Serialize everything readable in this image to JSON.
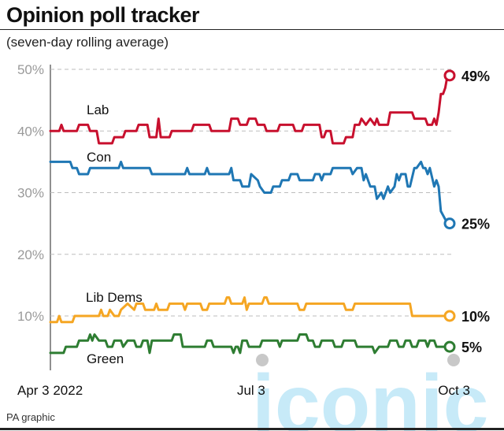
{
  "chart_data": {
    "type": "line",
    "title": "Opinion poll tracker",
    "subtitle": "(seven-day rolling average)",
    "ylim": [
      0,
      50
    ],
    "yticks": [
      "10%",
      "20%",
      "30%",
      "40%",
      "50%"
    ],
    "ytick_values": [
      10,
      20,
      30,
      40,
      50
    ],
    "xticks": [
      "Apr 3 2022",
      "Jul 3",
      "Oct 3"
    ],
    "xtick_positions": [
      0,
      91,
      183
    ],
    "grid": true,
    "series": [
      {
        "name": "Lab",
        "color": "#c8102e",
        "end_label": "49%",
        "points": [
          [
            0,
            40
          ],
          [
            4,
            40
          ],
          [
            5,
            41
          ],
          [
            6,
            40
          ],
          [
            12,
            40
          ],
          [
            13,
            41
          ],
          [
            17,
            41
          ],
          [
            18,
            40
          ],
          [
            21,
            40
          ],
          [
            22,
            38
          ],
          [
            28,
            38
          ],
          [
            29,
            39
          ],
          [
            33,
            39
          ],
          [
            34,
            40
          ],
          [
            39,
            40
          ],
          [
            40,
            41
          ],
          [
            44,
            41
          ],
          [
            45,
            39
          ],
          [
            48,
            39
          ],
          [
            49,
            42
          ],
          [
            50,
            39
          ],
          [
            54,
            39
          ],
          [
            55,
            40
          ],
          [
            64,
            40
          ],
          [
            65,
            41
          ],
          [
            72,
            41
          ],
          [
            73,
            40
          ],
          [
            81,
            40
          ],
          [
            82,
            42
          ],
          [
            85,
            42
          ],
          [
            86,
            41
          ],
          [
            89,
            41
          ],
          [
            90,
            42
          ],
          [
            93,
            42
          ],
          [
            94,
            41
          ],
          [
            97,
            41
          ],
          [
            98,
            40
          ],
          [
            103,
            40
          ],
          [
            104,
            41
          ],
          [
            110,
            41
          ],
          [
            111,
            40
          ],
          [
            114,
            40
          ],
          [
            115,
            41
          ],
          [
            122,
            41
          ],
          [
            123,
            39
          ],
          [
            124,
            39
          ],
          [
            125,
            40
          ],
          [
            127,
            40
          ],
          [
            128,
            38
          ],
          [
            133,
            38
          ],
          [
            134,
            39
          ],
          [
            137,
            39
          ],
          [
            138,
            41
          ],
          [
            140,
            41
          ],
          [
            141,
            42
          ],
          [
            143,
            41
          ],
          [
            145,
            42
          ],
          [
            147,
            41
          ],
          [
            148,
            42
          ],
          [
            149,
            41
          ],
          [
            153,
            41
          ],
          [
            154,
            43
          ],
          [
            164,
            43
          ],
          [
            165,
            42
          ],
          [
            170,
            42
          ],
          [
            171,
            41
          ],
          [
            173,
            41
          ],
          [
            174,
            42
          ],
          [
            175,
            41
          ],
          [
            176,
            43
          ],
          [
            177,
            46
          ],
          [
            178,
            46
          ],
          [
            179,
            47
          ],
          [
            180,
            49
          ],
          [
            181,
            49
          ]
        ]
      },
      {
        "name": "Con",
        "color": "#1f77b4",
        "end_label": "25%",
        "points": [
          [
            0,
            35
          ],
          [
            9,
            35
          ],
          [
            10,
            34
          ],
          [
            12,
            34
          ],
          [
            13,
            33
          ],
          [
            17,
            33
          ],
          [
            18,
            34
          ],
          [
            31,
            34
          ],
          [
            32,
            35
          ],
          [
            33,
            34
          ],
          [
            45,
            34
          ],
          [
            46,
            33
          ],
          [
            61,
            33
          ],
          [
            62,
            34
          ],
          [
            63,
            33
          ],
          [
            70,
            33
          ],
          [
            71,
            34
          ],
          [
            72,
            33
          ],
          [
            81,
            33
          ],
          [
            82,
            34
          ],
          [
            83,
            32
          ],
          [
            86,
            32
          ],
          [
            87,
            31
          ],
          [
            90,
            31
          ],
          [
            91,
            33
          ],
          [
            94,
            32
          ],
          [
            95,
            31
          ],
          [
            97,
            30
          ],
          [
            100,
            30
          ],
          [
            101,
            31
          ],
          [
            104,
            31
          ],
          [
            105,
            32
          ],
          [
            108,
            32
          ],
          [
            109,
            33
          ],
          [
            112,
            33
          ],
          [
            113,
            32
          ],
          [
            119,
            32
          ],
          [
            120,
            33
          ],
          [
            122,
            33
          ],
          [
            123,
            32
          ],
          [
            124,
            33
          ],
          [
            127,
            33
          ],
          [
            128,
            34
          ],
          [
            136,
            34
          ],
          [
            137,
            33
          ],
          [
            139,
            34
          ],
          [
            141,
            34
          ],
          [
            142,
            32
          ],
          [
            143,
            33
          ],
          [
            145,
            31
          ],
          [
            147,
            31
          ],
          [
            148,
            29
          ],
          [
            150,
            30
          ],
          [
            151,
            29
          ],
          [
            153,
            31
          ],
          [
            154,
            30
          ],
          [
            156,
            31
          ],
          [
            157,
            33
          ],
          [
            158,
            32
          ],
          [
            159,
            33
          ],
          [
            161,
            33
          ],
          [
            162,
            31
          ],
          [
            163,
            31
          ],
          [
            165,
            34
          ],
          [
            166,
            34
          ],
          [
            168,
            35
          ],
          [
            169,
            34
          ],
          [
            170,
            34
          ],
          [
            171,
            33
          ],
          [
            172,
            34
          ],
          [
            174,
            31
          ],
          [
            175,
            32
          ],
          [
            176,
            31
          ],
          [
            177,
            27
          ],
          [
            180,
            25
          ],
          [
            181,
            25
          ]
        ]
      },
      {
        "name": "Lib Dems",
        "color": "#f5a623",
        "end_label": "10%",
        "points": [
          [
            0,
            9
          ],
          [
            3,
            9
          ],
          [
            4,
            10
          ],
          [
            5,
            9
          ],
          [
            10,
            9
          ],
          [
            11,
            10
          ],
          [
            22,
            10
          ],
          [
            23,
            11
          ],
          [
            24,
            10
          ],
          [
            26,
            10
          ],
          [
            27,
            11
          ],
          [
            29,
            10
          ],
          [
            31,
            10
          ],
          [
            32,
            11
          ],
          [
            35,
            12
          ],
          [
            38,
            11
          ],
          [
            39,
            12
          ],
          [
            42,
            12
          ],
          [
            43,
            11
          ],
          [
            47,
            11
          ],
          [
            48,
            12
          ],
          [
            49,
            11
          ],
          [
            53,
            11
          ],
          [
            54,
            12
          ],
          [
            60,
            12
          ],
          [
            61,
            11
          ],
          [
            62,
            12
          ],
          [
            68,
            12
          ],
          [
            69,
            11
          ],
          [
            71,
            11
          ],
          [
            72,
            12
          ],
          [
            79,
            12
          ],
          [
            80,
            13
          ],
          [
            81,
            13
          ],
          [
            82,
            12
          ],
          [
            87,
            12
          ],
          [
            88,
            13
          ],
          [
            89,
            11
          ],
          [
            90,
            12
          ],
          [
            96,
            12
          ],
          [
            97,
            13
          ],
          [
            98,
            13
          ],
          [
            99,
            12
          ],
          [
            112,
            12
          ],
          [
            113,
            11
          ],
          [
            115,
            11
          ],
          [
            116,
            12
          ],
          [
            133,
            12
          ],
          [
            134,
            11
          ],
          [
            137,
            11
          ],
          [
            138,
            12
          ],
          [
            163,
            12
          ],
          [
            164,
            10
          ],
          [
            181,
            10
          ]
        ]
      },
      {
        "name": "Green",
        "color": "#2e7d32",
        "end_label": "5%",
        "points": [
          [
            0,
            4
          ],
          [
            6,
            4
          ],
          [
            7,
            5
          ],
          [
            12,
            5
          ],
          [
            13,
            6
          ],
          [
            17,
            6
          ],
          [
            18,
            7
          ],
          [
            19,
            6
          ],
          [
            20,
            7
          ],
          [
            22,
            6
          ],
          [
            25,
            6
          ],
          [
            26,
            5
          ],
          [
            28,
            5
          ],
          [
            29,
            6
          ],
          [
            32,
            6
          ],
          [
            33,
            5
          ],
          [
            35,
            6
          ],
          [
            38,
            6
          ],
          [
            39,
            5
          ],
          [
            41,
            5
          ],
          [
            42,
            6
          ],
          [
            44,
            6
          ],
          [
            45,
            4
          ],
          [
            46,
            6
          ],
          [
            55,
            6
          ],
          [
            56,
            7
          ],
          [
            59,
            7
          ],
          [
            60,
            5
          ],
          [
            70,
            5
          ],
          [
            71,
            6
          ],
          [
            73,
            6
          ],
          [
            74,
            5
          ],
          [
            82,
            5
          ],
          [
            83,
            4
          ],
          [
            84,
            5
          ],
          [
            85,
            5
          ],
          [
            86,
            4
          ],
          [
            87,
            6
          ],
          [
            89,
            6
          ],
          [
            90,
            5
          ],
          [
            95,
            5
          ],
          [
            96,
            6
          ],
          [
            103,
            6
          ],
          [
            104,
            5
          ],
          [
            105,
            6
          ],
          [
            112,
            6
          ],
          [
            113,
            7
          ],
          [
            116,
            7
          ],
          [
            117,
            6
          ],
          [
            119,
            6
          ],
          [
            120,
            5
          ],
          [
            122,
            5
          ],
          [
            123,
            6
          ],
          [
            128,
            6
          ],
          [
            129,
            5
          ],
          [
            132,
            5
          ],
          [
            133,
            6
          ],
          [
            138,
            6
          ],
          [
            139,
            5
          ],
          [
            146,
            5
          ],
          [
            147,
            4
          ],
          [
            149,
            5
          ],
          [
            153,
            5
          ],
          [
            154,
            6
          ],
          [
            157,
            6
          ],
          [
            158,
            5
          ],
          [
            160,
            5
          ],
          [
            161,
            6
          ],
          [
            163,
            6
          ],
          [
            164,
            5
          ],
          [
            166,
            5
          ],
          [
            167,
            6
          ],
          [
            170,
            6
          ],
          [
            171,
            5
          ],
          [
            172,
            6
          ],
          [
            174,
            6
          ],
          [
            175,
            5
          ],
          [
            178,
            5
          ],
          [
            181,
            5
          ]
        ]
      }
    ]
  },
  "footer": "PA graphic"
}
